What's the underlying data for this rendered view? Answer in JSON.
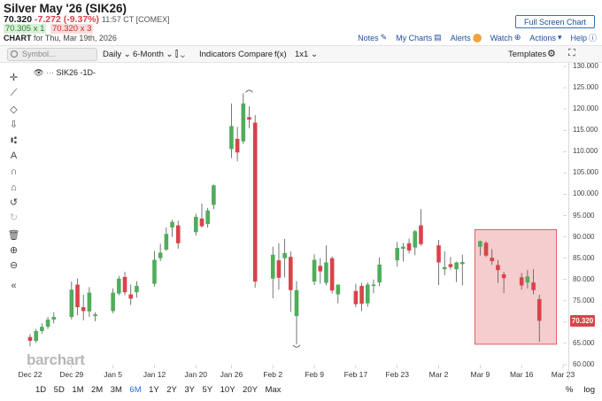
{
  "header": {
    "title": "Silver May '26 (SIK26)",
    "last": "70.320",
    "change": "-7.272 (-9.37%)",
    "time": "11:57 CT [COMEX]",
    "bid": "70.305 x 1",
    "ask": "70.320 x 3",
    "chart_label": "CHART",
    "chart_for": "for Thu, Mar 19th, 2026",
    "fullscreen": "Full Screen Chart"
  },
  "actions": {
    "notes": "Notes",
    "mycharts": "My Charts",
    "alerts": "Alerts",
    "watch": "Watch",
    "actions": "Actions",
    "help": "Help"
  },
  "toolbar": {
    "search_placeholder": "Symbol...",
    "interval": "Daily",
    "range": "6-Month",
    "indicators": "Indicators",
    "compare": "Compare",
    "fx": "f(x)",
    "layout": "1x1",
    "templates": "Templates"
  },
  "legend": "SIK26 -1D-",
  "watermark": "barchart",
  "last_price_flag": "70.320",
  "ranges": [
    "1D",
    "5D",
    "1M",
    "2M",
    "3M",
    "6M",
    "1Y",
    "2Y",
    "3Y",
    "5Y",
    "10Y",
    "20Y",
    "Max"
  ],
  "active_range": "6M",
  "bottom_right": [
    "%",
    "log"
  ],
  "colors": {
    "up": "#4fad5b",
    "down": "#d9434a",
    "highlight": "#f4c4c6",
    "accent": "#1f4f99"
  },
  "chart_data": {
    "type": "candlestick",
    "ylim": [
      60,
      130
    ],
    "yticks": [
      "60.000",
      "65.000",
      "70.000",
      "75.000",
      "80.000",
      "85.000",
      "90.000",
      "95.000",
      "100.000",
      "105.000",
      "110.000",
      "115.000",
      "120.000",
      "125.000",
      "130.000"
    ],
    "xtick_labels": [
      "Dec 22",
      "Dec 29",
      "Jan 5",
      "Jan 12",
      "Jan 20",
      "Jan 26",
      "Feb 2",
      "Feb 9",
      "Feb 17",
      "Feb 23",
      "Mar 2",
      "Mar 9",
      "Mar 16",
      "Mar 23"
    ],
    "xtick_index": [
      0,
      7,
      14,
      21,
      28,
      34,
      41,
      48,
      55,
      62,
      69,
      76,
      83,
      90
    ],
    "candles": [
      {
        "i": 0,
        "o": 66.5,
        "h": 67.2,
        "l": 64.3,
        "c": 65.6
      },
      {
        "i": 1,
        "o": 65.6,
        "h": 68.4,
        "l": 65.1,
        "c": 67.9
      },
      {
        "i": 2,
        "o": 67.9,
        "h": 69.7,
        "l": 67.3,
        "c": 68.9
      },
      {
        "i": 3,
        "o": 68.9,
        "h": 71.2,
        "l": 68.4,
        "c": 70.6
      },
      {
        "i": 4,
        "o": 70.6,
        "h": 72.3,
        "l": 69.7,
        "c": 71.2
      },
      {
        "i": 7,
        "o": 71.2,
        "h": 79.5,
        "l": 70.6,
        "c": 77.6
      },
      {
        "i": 8,
        "o": 78.8,
        "h": 80.2,
        "l": 71.6,
        "c": 73.5
      },
      {
        "i": 9,
        "o": 73.5,
        "h": 76.4,
        "l": 70.4,
        "c": 72.6
      },
      {
        "i": 10,
        "o": 72.5,
        "h": 78.2,
        "l": 71.2,
        "c": 76.9
      },
      {
        "i": 11,
        "o": 71.4,
        "h": 72.3,
        "l": 70.2,
        "c": 71.8
      },
      {
        "i": 14,
        "o": 72.6,
        "h": 77.9,
        "l": 72.1,
        "c": 76.9
      },
      {
        "i": 15,
        "o": 76.7,
        "h": 80.8,
        "l": 76.3,
        "c": 80.2
      },
      {
        "i": 16,
        "o": 80.6,
        "h": 81.8,
        "l": 76.3,
        "c": 77.0
      },
      {
        "i": 17,
        "o": 76.5,
        "h": 78.8,
        "l": 74.0,
        "c": 75.5
      },
      {
        "i": 18,
        "o": 77.0,
        "h": 79.6,
        "l": 75.7,
        "c": 78.5
      },
      {
        "i": 21,
        "o": 79.0,
        "h": 86.7,
        "l": 78.3,
        "c": 84.6
      },
      {
        "i": 22,
        "o": 85.0,
        "h": 88.4,
        "l": 84.3,
        "c": 86.3
      },
      {
        "i": 23,
        "o": 87.0,
        "h": 92.2,
        "l": 86.7,
        "c": 90.7
      },
      {
        "i": 24,
        "o": 92.2,
        "h": 94.0,
        "l": 90.0,
        "c": 93.5
      },
      {
        "i": 25,
        "o": 92.7,
        "h": 93.8,
        "l": 87.2,
        "c": 88.5
      },
      {
        "i": 28,
        "o": 91.1,
        "h": 95.4,
        "l": 90.3,
        "c": 94.7
      },
      {
        "i": 29,
        "o": 94.3,
        "h": 97.8,
        "l": 92.2,
        "c": 92.5
      },
      {
        "i": 30,
        "o": 93.0,
        "h": 96.8,
        "l": 92.2,
        "c": 96.2
      },
      {
        "i": 31,
        "o": 97.5,
        "h": 102.3,
        "l": 96.5,
        "c": 102.1
      },
      {
        "i": 34,
        "o": 110.6,
        "h": 121.3,
        "l": 108.5,
        "c": 116.0
      },
      {
        "i": 35,
        "o": 113.0,
        "h": 115.8,
        "l": 107.7,
        "c": 109.8
      },
      {
        "i": 36,
        "o": 112.4,
        "h": 123.7,
        "l": 111.8,
        "c": 121.3
      },
      {
        "i": 37,
        "o": 118.1,
        "h": 120.6,
        "l": 115.5,
        "c": 117.5
      },
      {
        "i": 38,
        "o": 116.8,
        "h": 118.6,
        "l": 78.1,
        "c": 79.5
      },
      {
        "i": 41,
        "o": 80.2,
        "h": 87.7,
        "l": 75.6,
        "c": 85.8
      },
      {
        "i": 42,
        "o": 84.5,
        "h": 88.5,
        "l": 77.6,
        "c": 80.4
      },
      {
        "i": 43,
        "o": 85.0,
        "h": 89.5,
        "l": 80.5,
        "c": 86.2
      },
      {
        "i": 44,
        "o": 85.3,
        "h": 86.6,
        "l": 72.4,
        "c": 77.5
      },
      {
        "i": 45,
        "o": 71.4,
        "h": 79.6,
        "l": 64.8,
        "c": 77.5
      },
      {
        "i": 48,
        "o": 79.5,
        "h": 85.9,
        "l": 78.7,
        "c": 84.6
      },
      {
        "i": 49,
        "o": 83.2,
        "h": 85.0,
        "l": 79.0,
        "c": 81.9
      },
      {
        "i": 50,
        "o": 79.2,
        "h": 88.0,
        "l": 78.6,
        "c": 84.0
      },
      {
        "i": 51,
        "o": 85.0,
        "h": 85.4,
        "l": 76.7,
        "c": 77.4
      },
      {
        "i": 52,
        "o": 76.5,
        "h": 78.8,
        "l": 74.4,
        "c": 78.8
      },
      {
        "i": 55,
        "o": 77.3,
        "h": 79.0,
        "l": 73.5,
        "c": 74.2
      },
      {
        "i": 56,
        "o": 78.5,
        "h": 79.2,
        "l": 72.6,
        "c": 74.3
      },
      {
        "i": 57,
        "o": 74.4,
        "h": 79.3,
        "l": 73.6,
        "c": 78.8
      },
      {
        "i": 58,
        "o": 78.5,
        "h": 80.0,
        "l": 76.8,
        "c": 78.8
      },
      {
        "i": 59,
        "o": 79.3,
        "h": 85.2,
        "l": 78.4,
        "c": 83.5
      },
      {
        "i": 62,
        "o": 84.5,
        "h": 88.8,
        "l": 83.0,
        "c": 87.4
      },
      {
        "i": 63,
        "o": 87.2,
        "h": 88.6,
        "l": 84.2,
        "c": 87.7
      },
      {
        "i": 64,
        "o": 88.5,
        "h": 89.6,
        "l": 86.1,
        "c": 86.8
      },
      {
        "i": 65,
        "o": 87.5,
        "h": 91.6,
        "l": 85.7,
        "c": 91.3
      },
      {
        "i": 66,
        "o": 92.7,
        "h": 96.5,
        "l": 87.9,
        "c": 88.3
      },
      {
        "i": 69,
        "o": 88.0,
        "h": 89.3,
        "l": 78.7,
        "c": 84.0
      },
      {
        "i": 70,
        "o": 82.4,
        "h": 86.6,
        "l": 81.0,
        "c": 82.9
      },
      {
        "i": 71,
        "o": 83.6,
        "h": 85.3,
        "l": 82.3,
        "c": 82.9
      },
      {
        "i": 72,
        "o": 82.4,
        "h": 84.2,
        "l": 79.4,
        "c": 84.0
      },
      {
        "i": 73,
        "o": 83.6,
        "h": 85.8,
        "l": 78.6,
        "c": 84.1
      },
      {
        "i": 76,
        "o": 87.7,
        "h": 89.1,
        "l": 85.6,
        "c": 89.0
      },
      {
        "i": 77,
        "o": 88.6,
        "h": 89.0,
        "l": 85.2,
        "c": 85.6
      },
      {
        "i": 78,
        "o": 85.1,
        "h": 87.1,
        "l": 83.4,
        "c": 84.3
      },
      {
        "i": 79,
        "o": 83.4,
        "h": 84.6,
        "l": 79.2,
        "c": 82.2
      },
      {
        "i": 80,
        "o": 81.2,
        "h": 81.8,
        "l": 76.8,
        "c": 80.3
      },
      {
        "i": 83,
        "o": 80.5,
        "h": 81.5,
        "l": 77.6,
        "c": 78.6
      },
      {
        "i": 84,
        "o": 79.3,
        "h": 82.2,
        "l": 77.9,
        "c": 80.7
      },
      {
        "i": 85,
        "o": 79.3,
        "h": 82.4,
        "l": 76.5,
        "c": 77.5
      },
      {
        "i": 86,
        "o": 75.4,
        "h": 76.4,
        "l": 65.4,
        "c": 70.3
      }
    ],
    "highlight_box": {
      "i_start": 76,
      "i_end": 88,
      "y_low": 64.8,
      "y_high": 91.7
    },
    "markers": [
      {
        "i": 37,
        "price": 124.3,
        "shape": "arc-top"
      },
      {
        "i": 45,
        "price": 64.2,
        "shape": "arc-bottom"
      }
    ]
  }
}
